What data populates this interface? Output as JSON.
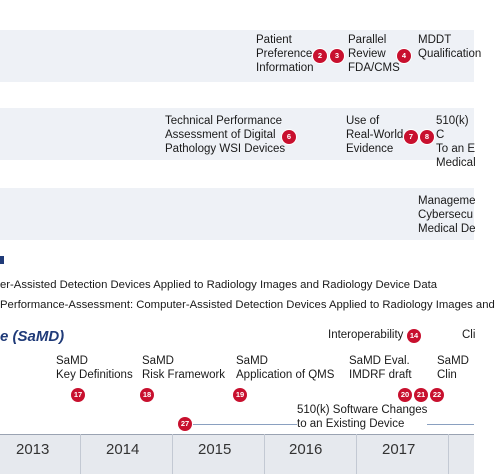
{
  "rows": {
    "row1": [
      {
        "text": "Patient\nPreference\nInformation",
        "badges": [
          "2",
          "3"
        ]
      },
      {
        "text": "Parallel\nReview\nFDA/CMS",
        "badges": [
          "4"
        ]
      },
      {
        "text": "MDDT\nQualification"
      }
    ],
    "row2": [
      {
        "text": "Technical Performance\nAssessment of Digital\nPathology WSI Devices",
        "badges": [
          "6"
        ]
      },
      {
        "text": "Use of\nReal-World\nEvidence",
        "badges": [
          "7",
          "8"
        ]
      },
      {
        "text": "510(k) C\nTo an E\nMedical"
      }
    ],
    "row3": [
      {
        "text": "Manageme\nCybersecu\nMedical De"
      }
    ]
  },
  "radiology": {
    "line1": "er-Assisted Detection Devices Applied to Radiology Images and Radiology Device Data",
    "line2": "Performance-Assessment: Computer-Assisted Detection Devices Applied to Radiology Images and"
  },
  "samd": {
    "title": "e (SaMD)",
    "interoperability": {
      "text": "Interoperability",
      "badge": "14"
    },
    "clipped": "Cli",
    "items": [
      {
        "text": "SaMD\nKey Definitions",
        "badge": "17"
      },
      {
        "text": "SaMD\nRisk Framework",
        "badge": "18"
      },
      {
        "text": "SaMD\nApplication of QMS",
        "badge": "19"
      },
      {
        "text": "SaMD Eval.\nIMDRF draft",
        "badges": [
          "20",
          "21",
          "22"
        ]
      },
      {
        "text": "SaMD\nClin"
      }
    ],
    "software_changes": {
      "text": "510(k) Software Changes\nto an Existing Device",
      "badge": "27"
    }
  },
  "axis": {
    "years": [
      "2013",
      "2014",
      "2015",
      "2016",
      "2017"
    ]
  },
  "colors": {
    "badge": "#c8102e",
    "band": "#eef1f6",
    "title": "#1f3a78"
  }
}
